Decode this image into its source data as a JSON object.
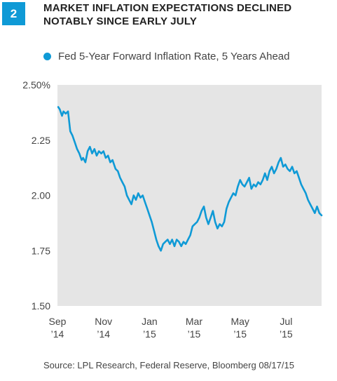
{
  "figure": {
    "number": "2",
    "title": "MARKET INFLATION EXPECTATIONS DECLINED NOTABLY SINCE EARLY JULY",
    "source": "Source: LPL Research, Federal Reserve, Bloomberg   08/17/15"
  },
  "colors": {
    "accent": "#0f9ad6",
    "plot_bg": "#e5e5e5"
  },
  "chart_data": {
    "type": "line",
    "title": "MARKET INFLATION EXPECTATIONS DECLINED NOTABLY SINCE EARLY JULY",
    "legend": {
      "position": "top-left",
      "entries": [
        "Fed 5-Year Forward Inflation Rate, 5 Years Ahead"
      ]
    },
    "xlabel": "",
    "ylabel": "",
    "xlim": [
      "2014-09-01",
      "2015-08-17"
    ],
    "ylim": [
      1.5,
      2.5
    ],
    "grid": false,
    "y_ticks": [
      {
        "value": 2.5,
        "label": "2.50%"
      },
      {
        "value": 2.25,
        "label": "2.25"
      },
      {
        "value": 2.0,
        "label": "2.00"
      },
      {
        "value": 1.75,
        "label": "1.75"
      },
      {
        "value": 1.5,
        "label": "1.50"
      }
    ],
    "x_ticks": [
      {
        "date": "2014-09-01",
        "line1": "Sep",
        "line2": "’14"
      },
      {
        "date": "2014-11-01",
        "line1": "Nov",
        "line2": "’14"
      },
      {
        "date": "2015-01-01",
        "line1": "Jan",
        "line2": "’15"
      },
      {
        "date": "2015-03-01",
        "line1": "Mar",
        "line2": "’15"
      },
      {
        "date": "2015-05-01",
        "line1": "May",
        "line2": "’15"
      },
      {
        "date": "2015-07-01",
        "line1": "Jul",
        "line2": "’15"
      }
    ],
    "series": [
      {
        "name": "Fed 5-Year Forward Inflation Rate, 5 Years Ahead",
        "color": "#0f9ad6",
        "points": [
          [
            "2014-09-02",
            2.4
          ],
          [
            "2014-09-04",
            2.39
          ],
          [
            "2014-09-07",
            2.36
          ],
          [
            "2014-09-09",
            2.38
          ],
          [
            "2014-09-12",
            2.37
          ],
          [
            "2014-09-15",
            2.38
          ],
          [
            "2014-09-18",
            2.29
          ],
          [
            "2014-09-21",
            2.27
          ],
          [
            "2014-09-24",
            2.24
          ],
          [
            "2014-09-27",
            2.21
          ],
          [
            "2014-09-30",
            2.19
          ],
          [
            "2014-10-03",
            2.16
          ],
          [
            "2014-10-05",
            2.17
          ],
          [
            "2014-10-08",
            2.15
          ],
          [
            "2014-10-11",
            2.2
          ],
          [
            "2014-10-14",
            2.22
          ],
          [
            "2014-10-17",
            2.19
          ],
          [
            "2014-10-20",
            2.21
          ],
          [
            "2014-10-23",
            2.18
          ],
          [
            "2014-10-26",
            2.2
          ],
          [
            "2014-10-29",
            2.19
          ],
          [
            "2014-11-01",
            2.2
          ],
          [
            "2014-11-04",
            2.17
          ],
          [
            "2014-11-07",
            2.18
          ],
          [
            "2014-11-10",
            2.15
          ],
          [
            "2014-11-13",
            2.16
          ],
          [
            "2014-11-17",
            2.12
          ],
          [
            "2014-11-20",
            2.11
          ],
          [
            "2014-11-23",
            2.08
          ],
          [
            "2014-11-26",
            2.06
          ],
          [
            "2014-11-29",
            2.04
          ],
          [
            "2014-12-02",
            2.0
          ],
          [
            "2014-12-05",
            1.98
          ],
          [
            "2014-12-08",
            1.96
          ],
          [
            "2014-12-11",
            2.0
          ],
          [
            "2014-12-14",
            1.98
          ],
          [
            "2014-12-17",
            2.01
          ],
          [
            "2014-12-20",
            1.99
          ],
          [
            "2014-12-23",
            2.0
          ],
          [
            "2014-12-26",
            1.97
          ],
          [
            "2014-12-29",
            1.94
          ],
          [
            "2015-01-01",
            1.91
          ],
          [
            "2015-01-04",
            1.88
          ],
          [
            "2015-01-07",
            1.84
          ],
          [
            "2015-01-10",
            1.8
          ],
          [
            "2015-01-13",
            1.77
          ],
          [
            "2015-01-16",
            1.75
          ],
          [
            "2015-01-19",
            1.78
          ],
          [
            "2015-01-22",
            1.79
          ],
          [
            "2015-01-25",
            1.8
          ],
          [
            "2015-01-28",
            1.78
          ],
          [
            "2015-01-31",
            1.8
          ],
          [
            "2015-02-03",
            1.77
          ],
          [
            "2015-02-06",
            1.8
          ],
          [
            "2015-02-09",
            1.79
          ],
          [
            "2015-02-12",
            1.77
          ],
          [
            "2015-02-15",
            1.79
          ],
          [
            "2015-02-18",
            1.78
          ],
          [
            "2015-02-21",
            1.8
          ],
          [
            "2015-02-24",
            1.82
          ],
          [
            "2015-02-27",
            1.86
          ],
          [
            "2015-03-02",
            1.87
          ],
          [
            "2015-03-05",
            1.88
          ],
          [
            "2015-03-08",
            1.9
          ],
          [
            "2015-03-11",
            1.93
          ],
          [
            "2015-03-14",
            1.95
          ],
          [
            "2015-03-17",
            1.9
          ],
          [
            "2015-03-20",
            1.87
          ],
          [
            "2015-03-23",
            1.9
          ],
          [
            "2015-03-26",
            1.93
          ],
          [
            "2015-03-29",
            1.88
          ],
          [
            "2015-04-01",
            1.85
          ],
          [
            "2015-04-04",
            1.87
          ],
          [
            "2015-04-07",
            1.86
          ],
          [
            "2015-04-10",
            1.88
          ],
          [
            "2015-04-13",
            1.94
          ],
          [
            "2015-04-16",
            1.97
          ],
          [
            "2015-04-19",
            1.99
          ],
          [
            "2015-04-22",
            2.01
          ],
          [
            "2015-04-25",
            2.0
          ],
          [
            "2015-04-28",
            2.04
          ],
          [
            "2015-05-01",
            2.07
          ],
          [
            "2015-05-04",
            2.05
          ],
          [
            "2015-05-07",
            2.04
          ],
          [
            "2015-05-10",
            2.06
          ],
          [
            "2015-05-13",
            2.08
          ],
          [
            "2015-05-16",
            2.03
          ],
          [
            "2015-05-19",
            2.05
          ],
          [
            "2015-05-22",
            2.04
          ],
          [
            "2015-05-25",
            2.06
          ],
          [
            "2015-05-28",
            2.05
          ],
          [
            "2015-05-31",
            2.07
          ],
          [
            "2015-06-03",
            2.1
          ],
          [
            "2015-06-06",
            2.07
          ],
          [
            "2015-06-09",
            2.11
          ],
          [
            "2015-06-12",
            2.13
          ],
          [
            "2015-06-15",
            2.1
          ],
          [
            "2015-06-18",
            2.12
          ],
          [
            "2015-06-21",
            2.15
          ],
          [
            "2015-06-24",
            2.17
          ],
          [
            "2015-06-27",
            2.13
          ],
          [
            "2015-06-30",
            2.14
          ],
          [
            "2015-07-03",
            2.12
          ],
          [
            "2015-07-06",
            2.11
          ],
          [
            "2015-07-09",
            2.13
          ],
          [
            "2015-07-12",
            2.1
          ],
          [
            "2015-07-15",
            2.11
          ],
          [
            "2015-07-18",
            2.08
          ],
          [
            "2015-07-21",
            2.05
          ],
          [
            "2015-07-24",
            2.03
          ],
          [
            "2015-07-27",
            2.01
          ],
          [
            "2015-07-30",
            1.98
          ],
          [
            "2015-08-02",
            1.96
          ],
          [
            "2015-08-05",
            1.94
          ],
          [
            "2015-08-08",
            1.92
          ],
          [
            "2015-08-11",
            1.95
          ],
          [
            "2015-08-14",
            1.92
          ],
          [
            "2015-08-17",
            1.91
          ]
        ]
      }
    ]
  }
}
